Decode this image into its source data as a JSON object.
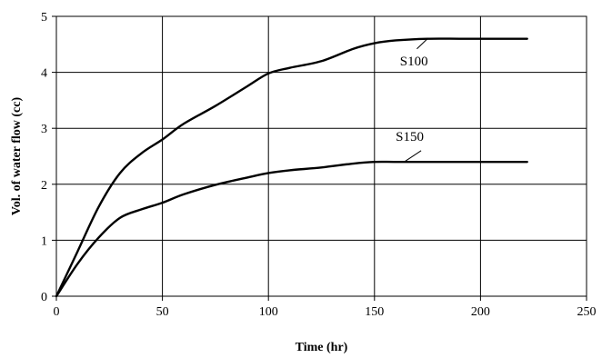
{
  "chart_data": {
    "type": "line",
    "title": "",
    "xlabel": "Time (hr)",
    "ylabel": "Vol. of water flow  (cc)",
    "xlim": [
      0,
      250
    ],
    "ylim": [
      0,
      5
    ],
    "xticks": [
      "0",
      "50",
      "100",
      "150",
      "200",
      "250"
    ],
    "yticks": [
      "0",
      "1",
      "2",
      "3",
      "4",
      "5"
    ],
    "grid": true,
    "legend": "inline labels",
    "line_color": "#000000",
    "series": [
      {
        "name": "S100",
        "x": [
          0,
          10,
          20,
          30,
          40,
          50,
          60,
          75,
          90,
          100,
          110,
          125,
          140,
          150,
          160,
          175,
          190,
          200,
          222
        ],
        "y": [
          0,
          0.8,
          1.6,
          2.2,
          2.55,
          2.8,
          3.08,
          3.4,
          3.75,
          3.98,
          4.08,
          4.2,
          4.42,
          4.52,
          4.57,
          4.6,
          4.6,
          4.6,
          4.6
        ]
      },
      {
        "name": "S150",
        "x": [
          0,
          10,
          20,
          30,
          40,
          50,
          60,
          75,
          90,
          100,
          110,
          125,
          140,
          150,
          160,
          175,
          190,
          200,
          222
        ],
        "y": [
          0,
          0.58,
          1.05,
          1.4,
          1.55,
          1.67,
          1.82,
          1.99,
          2.12,
          2.2,
          2.25,
          2.3,
          2.37,
          2.4,
          2.4,
          2.4,
          2.4,
          2.4,
          2.4
        ]
      }
    ]
  }
}
